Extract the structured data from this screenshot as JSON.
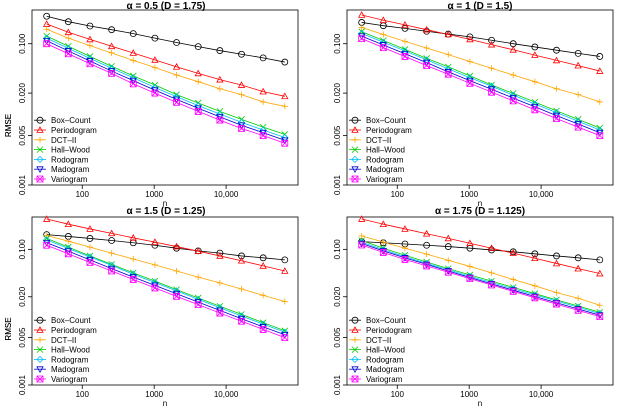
{
  "chart_data": [
    {
      "type": "line",
      "title": "α = 0.5   (D = 1.75)",
      "xlabel": "n",
      "ylabel": "RMSE",
      "xscale": "log",
      "yscale": "log",
      "xlim": [
        20,
        100000
      ],
      "ylim": [
        0.001,
        0.3
      ],
      "xticks": [
        100,
        1000,
        10000
      ],
      "xtick_labels": [
        "100",
        "1000",
        "10,000"
      ],
      "yticks": [
        0.001,
        0.005,
        0.02,
        0.1
      ],
      "ytick_labels": [
        "0.001",
        "0.005",
        "0.020",
        "0.100"
      ],
      "x": [
        32,
        64,
        128,
        256,
        512,
        1024,
        2048,
        4096,
        8192,
        16384,
        32768,
        65536
      ],
      "legend_position": "bottom-left",
      "series": [
        {
          "name": "Box–Count",
          "color": "#000000",
          "marker": "circle",
          "values": [
            0.245,
            0.205,
            0.178,
            0.158,
            0.139,
            0.12,
            0.104,
            0.091,
            0.08,
            0.071,
            0.063,
            0.055
          ]
        },
        {
          "name": "Periodogram",
          "color": "#ff0000",
          "marker": "triangle",
          "values": [
            0.19,
            0.145,
            0.115,
            0.092,
            0.074,
            0.059,
            0.047,
            0.038,
            0.031,
            0.026,
            0.021,
            0.018
          ]
        },
        {
          "name": "DCT–II",
          "color": "#ffa500",
          "marker": "plus",
          "values": [
            0.16,
            0.12,
            0.094,
            0.074,
            0.058,
            0.046,
            0.036,
            0.029,
            0.023,
            0.019,
            0.015,
            0.013
          ]
        },
        {
          "name": "Hall–Wood",
          "color": "#00cc00",
          "marker": "x",
          "values": [
            0.128,
            0.092,
            0.066,
            0.048,
            0.035,
            0.026,
            0.019,
            0.0145,
            0.011,
            0.0085,
            0.0066,
            0.0052
          ]
        },
        {
          "name": "Rodogram",
          "color": "#00bfff",
          "marker": "diamond",
          "values": [
            0.12,
            0.086,
            0.062,
            0.045,
            0.033,
            0.024,
            0.0178,
            0.0133,
            0.0101,
            0.0077,
            0.006,
            0.0047
          ]
        },
        {
          "name": "Madogram",
          "color": "#0000cd",
          "marker": "tri-down",
          "values": [
            0.11,
            0.079,
            0.057,
            0.041,
            0.03,
            0.022,
            0.0163,
            0.0122,
            0.0092,
            0.007,
            0.0055,
            0.0043
          ]
        },
        {
          "name": "Variogram",
          "color": "#ff00ff",
          "marker": "square-x",
          "values": [
            0.1,
            0.072,
            0.052,
            0.038,
            0.027,
            0.02,
            0.0148,
            0.011,
            0.0083,
            0.0063,
            0.005,
            0.0039
          ]
        }
      ]
    },
    {
      "type": "line",
      "title": "α = 1   (D = 1.5)",
      "xlabel": "n",
      "ylabel": "RMSE",
      "xscale": "log",
      "yscale": "log",
      "xlim": [
        20,
        100000
      ],
      "ylim": [
        0.001,
        0.3
      ],
      "xticks": [
        100,
        1000,
        10000
      ],
      "xtick_labels": [
        "100",
        "1000",
        "10,000"
      ],
      "yticks": [
        0.001,
        0.005,
        0.02,
        0.1
      ],
      "ytick_labels": [
        "0.001",
        "0.005",
        "0.020",
        "0.100"
      ],
      "x": [
        32,
        64,
        128,
        256,
        512,
        1024,
        2048,
        4096,
        8192,
        16384,
        32768,
        65536
      ],
      "legend_position": "bottom-left",
      "series": [
        {
          "name": "Box–Count",
          "color": "#000000",
          "marker": "circle",
          "values": [
            0.2,
            0.18,
            0.165,
            0.15,
            0.137,
            0.125,
            0.112,
            0.1,
            0.09,
            0.081,
            0.073,
            0.066
          ]
        },
        {
          "name": "Periodogram",
          "color": "#ff0000",
          "marker": "triangle",
          "values": [
            0.255,
            0.215,
            0.185,
            0.158,
            0.135,
            0.115,
            0.097,
            0.082,
            0.069,
            0.058,
            0.049,
            0.041
          ]
        },
        {
          "name": "DCT–II",
          "color": "#ffa500",
          "marker": "plus",
          "values": [
            0.17,
            0.135,
            0.108,
            0.087,
            0.07,
            0.056,
            0.045,
            0.036,
            0.029,
            0.023,
            0.019,
            0.015
          ]
        },
        {
          "name": "Hall–Wood",
          "color": "#00cc00",
          "marker": "x",
          "values": [
            0.148,
            0.111,
            0.083,
            0.062,
            0.047,
            0.035,
            0.026,
            0.0198,
            0.0149,
            0.0112,
            0.0085,
            0.0064
          ]
        },
        {
          "name": "Rodogram",
          "color": "#00bfff",
          "marker": "diamond",
          "values": [
            0.14,
            0.105,
            0.079,
            0.059,
            0.044,
            0.033,
            0.025,
            0.0187,
            0.014,
            0.0106,
            0.008,
            0.006
          ]
        },
        {
          "name": "Madogram",
          "color": "#0000cd",
          "marker": "tri-down",
          "values": [
            0.128,
            0.096,
            0.072,
            0.054,
            0.04,
            0.03,
            0.0227,
            0.017,
            0.0128,
            0.0096,
            0.0073,
            0.0055
          ]
        },
        {
          "name": "Variogram",
          "color": "#ff00ff",
          "marker": "square-x",
          "values": [
            0.118,
            0.088,
            0.066,
            0.049,
            0.037,
            0.0275,
            0.0206,
            0.0155,
            0.0116,
            0.0087,
            0.0066,
            0.005
          ]
        }
      ]
    },
    {
      "type": "line",
      "title": "α = 1.5   (D = 1.25)",
      "xlabel": "n",
      "ylabel": "RMSE",
      "xscale": "log",
      "yscale": "log",
      "xlim": [
        20,
        100000
      ],
      "ylim": [
        0.001,
        0.3
      ],
      "xticks": [
        100,
        1000,
        10000
      ],
      "xtick_labels": [
        "100",
        "1000",
        "10,000"
      ],
      "yticks": [
        0.001,
        0.005,
        0.02,
        0.1
      ],
      "ytick_labels": [
        "0.001",
        "0.005",
        "0.020",
        "0.100"
      ],
      "x": [
        32,
        64,
        128,
        256,
        512,
        1024,
        2048,
        4096,
        8192,
        16384,
        32768,
        65536
      ],
      "legend_position": "bottom-left",
      "series": [
        {
          "name": "Box–Count",
          "color": "#000000",
          "marker": "circle",
          "values": [
            0.165,
            0.155,
            0.145,
            0.135,
            0.125,
            0.115,
            0.104,
            0.095,
            0.088,
            0.08,
            0.075,
            0.07
          ]
        },
        {
          "name": "Periodogram",
          "color": "#ff0000",
          "marker": "triangle",
          "values": [
            0.28,
            0.235,
            0.2,
            0.172,
            0.148,
            0.128,
            0.11,
            0.094,
            0.08,
            0.068,
            0.057,
            0.048
          ]
        },
        {
          "name": "DCT–II",
          "color": "#ffa500",
          "marker": "plus",
          "values": [
            0.16,
            0.132,
            0.108,
            0.088,
            0.072,
            0.059,
            0.048,
            0.039,
            0.032,
            0.026,
            0.021,
            0.017
          ]
        },
        {
          "name": "Hall–Wood",
          "color": "#00cc00",
          "marker": "x",
          "values": [
            0.145,
            0.108,
            0.08,
            0.06,
            0.045,
            0.034,
            0.0255,
            0.0192,
            0.0145,
            0.011,
            0.0083,
            0.0063
          ]
        },
        {
          "name": "Rodogram",
          "color": "#00bfff",
          "marker": "diamond",
          "values": [
            0.138,
            0.103,
            0.077,
            0.058,
            0.043,
            0.0325,
            0.0244,
            0.0183,
            0.0138,
            0.0104,
            0.0079,
            0.006
          ]
        },
        {
          "name": "Madogram",
          "color": "#0000cd",
          "marker": "tri-down",
          "values": [
            0.125,
            0.094,
            0.07,
            0.052,
            0.039,
            0.0295,
            0.0222,
            0.0167,
            0.0126,
            0.0095,
            0.0072,
            0.0055
          ]
        },
        {
          "name": "Variogram",
          "color": "#ff00ff",
          "marker": "square-x",
          "values": [
            0.115,
            0.086,
            0.064,
            0.048,
            0.036,
            0.027,
            0.0203,
            0.0153,
            0.0115,
            0.0087,
            0.0066,
            0.005
          ]
        }
      ]
    },
    {
      "type": "line",
      "title": "α = 1.75   (D = 1.125)",
      "xlabel": "n",
      "ylabel": "RMSE",
      "xscale": "log",
      "yscale": "log",
      "xlim": [
        20,
        100000
      ],
      "ylim": [
        0.001,
        0.3
      ],
      "xticks": [
        100,
        1000,
        10000
      ],
      "xtick_labels": [
        "100",
        "1000",
        "10,000"
      ],
      "yticks": [
        0.001,
        0.005,
        0.02,
        0.1
      ],
      "ytick_labels": [
        "0.001",
        "0.005",
        "0.020",
        "0.100"
      ],
      "x": [
        32,
        64,
        128,
        256,
        512,
        1024,
        2048,
        4096,
        8192,
        16384,
        32768,
        65536
      ],
      "legend_position": "bottom-left",
      "series": [
        {
          "name": "Box–Count",
          "color": "#000000",
          "marker": "circle",
          "values": [
            0.13,
            0.125,
            0.12,
            0.115,
            0.11,
            0.104,
            0.098,
            0.092,
            0.086,
            0.08,
            0.075,
            0.07
          ]
        },
        {
          "name": "Periodogram",
          "color": "#ff0000",
          "marker": "triangle",
          "values": [
            0.28,
            0.235,
            0.2,
            0.17,
            0.145,
            0.123,
            0.104,
            0.088,
            0.074,
            0.062,
            0.052,
            0.044
          ]
        },
        {
          "name": "DCT–II",
          "color": "#ffa500",
          "marker": "plus",
          "values": [
            0.158,
            0.128,
            0.104,
            0.085,
            0.069,
            0.056,
            0.045,
            0.036,
            0.029,
            0.023,
            0.019,
            0.015
          ]
        },
        {
          "name": "Hall–Wood",
          "color": "#00cc00",
          "marker": "x",
          "values": [
            0.135,
            0.104,
            0.082,
            0.065,
            0.052,
            0.042,
            0.034,
            0.0275,
            0.0222,
            0.018,
            0.0146,
            0.0118
          ]
        },
        {
          "name": "Rodogram",
          "color": "#00bfff",
          "marker": "diamond",
          "values": [
            0.128,
            0.099,
            0.078,
            0.062,
            0.05,
            0.04,
            0.0325,
            0.0263,
            0.0213,
            0.0173,
            0.014,
            0.0113
          ]
        },
        {
          "name": "Madogram",
          "color": "#0000cd",
          "marker": "tri-down",
          "values": [
            0.122,
            0.095,
            0.075,
            0.06,
            0.048,
            0.0385,
            0.031,
            0.025,
            0.0202,
            0.0163,
            0.0132,
            0.0107
          ]
        },
        {
          "name": "Variogram",
          "color": "#ff00ff",
          "marker": "square-x",
          "values": [
            0.116,
            0.09,
            0.071,
            0.057,
            0.046,
            0.037,
            0.0298,
            0.024,
            0.0193,
            0.0156,
            0.0126,
            0.0102
          ]
        }
      ]
    }
  ]
}
